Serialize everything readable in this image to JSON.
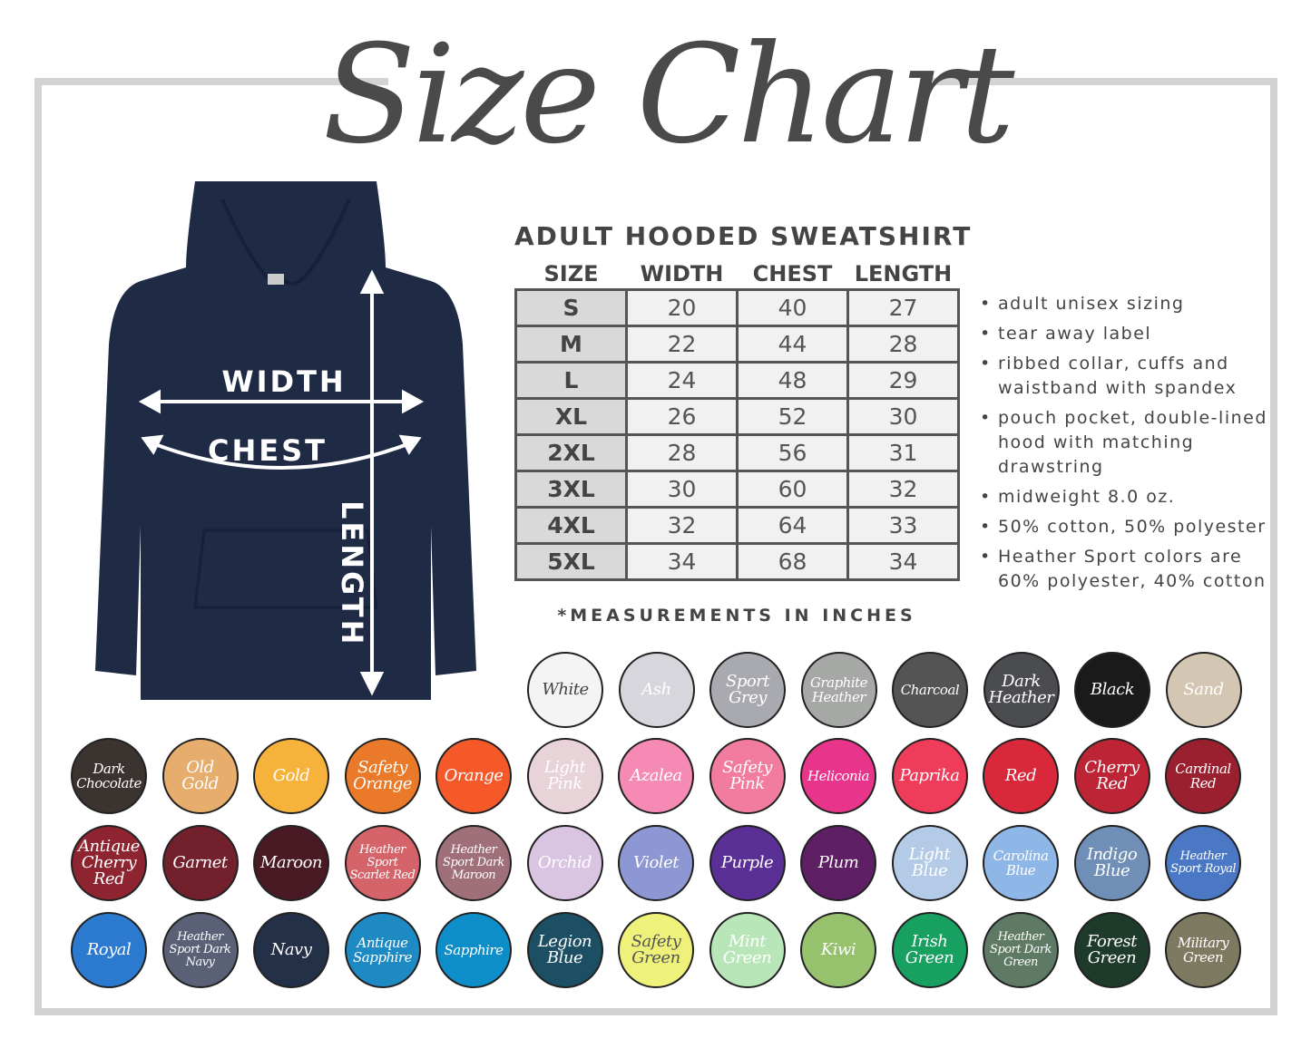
{
  "title": "Size Chart",
  "hoodie": {
    "color": "#1f2a44",
    "labels": {
      "width": "WIDTH",
      "chest": "CHEST",
      "length": "LENGTH"
    }
  },
  "table": {
    "title": "ADULT HOODED SWEATSHIRT",
    "headers": [
      "SIZE",
      "WIDTH",
      "CHEST",
      "LENGTH"
    ],
    "rows": [
      [
        "S",
        "20",
        "40",
        "27"
      ],
      [
        "M",
        "22",
        "44",
        "28"
      ],
      [
        "L",
        "24",
        "48",
        "29"
      ],
      [
        "XL",
        "26",
        "52",
        "30"
      ],
      [
        "2XL",
        "28",
        "56",
        "31"
      ],
      [
        "3XL",
        "30",
        "60",
        "32"
      ],
      [
        "4XL",
        "32",
        "64",
        "33"
      ],
      [
        "5XL",
        "34",
        "68",
        "34"
      ]
    ],
    "note": "*MEASUREMENTS IN INCHES"
  },
  "features": [
    "adult unisex sizing",
    "tear away label",
    "ribbed collar, cuffs and waistband with spandex",
    "pouch pocket, double-lined hood with matching drawstring",
    "midweight 8.0 oz.",
    "50% cotton, 50% polyester",
    "Heather Sport colors are 60% polyester, 40% cotton"
  ],
  "colors": [
    [
      {
        "name": "White",
        "hex": "#f4f4f4",
        "text": "#444"
      },
      {
        "name": "Ash",
        "hex": "#d6d6dc",
        "text": "#fff"
      },
      {
        "name": "Sport Grey",
        "hex": "#a9a9b0",
        "text": "#fff"
      },
      {
        "name": "Graphite Heather",
        "hex": "#a6a8a6",
        "text": "#fff"
      },
      {
        "name": "Charcoal",
        "hex": "#545454",
        "text": "#fff"
      },
      {
        "name": "Dark Heather",
        "hex": "#4a4c50",
        "text": "#fff"
      },
      {
        "name": "Black",
        "hex": "#1a1a1a",
        "text": "#fff"
      },
      {
        "name": "Sand",
        "hex": "#d3c6b3",
        "text": "#fff"
      }
    ],
    [
      {
        "name": "Dark Chocolate",
        "hex": "#3b3330",
        "text": "#fff"
      },
      {
        "name": "Old Gold",
        "hex": "#e6ad6c",
        "text": "#fff"
      },
      {
        "name": "Gold",
        "hex": "#f7b23c",
        "text": "#fff"
      },
      {
        "name": "Safety Orange",
        "hex": "#ea7a2a",
        "text": "#fff"
      },
      {
        "name": "Orange",
        "hex": "#f5592a",
        "text": "#fff"
      },
      {
        "name": "Light Pink",
        "hex": "#e8d3d8",
        "text": "#fff"
      },
      {
        "name": "Azalea",
        "hex": "#f58ab4",
        "text": "#fff"
      },
      {
        "name": "Safety Pink",
        "hex": "#f27ca0",
        "text": "#fff"
      },
      {
        "name": "Heliconia",
        "hex": "#e8348a",
        "text": "#fff"
      },
      {
        "name": "Paprika",
        "hex": "#ee3c5a",
        "text": "#fff"
      },
      {
        "name": "Red",
        "hex": "#d8283a",
        "text": "#fff"
      },
      {
        "name": "Cherry Red",
        "hex": "#bd2536",
        "text": "#fff"
      },
      {
        "name": "Cardinal Red",
        "hex": "#9a2030",
        "text": "#fff"
      }
    ],
    [
      {
        "name": "Antique Cherry Red",
        "hex": "#8d2430",
        "text": "#fff"
      },
      {
        "name": "Garnet",
        "hex": "#72202c",
        "text": "#fff"
      },
      {
        "name": "Maroon",
        "hex": "#4a1a24",
        "text": "#fff"
      },
      {
        "name": "Heather Sport Scarlet Red",
        "hex": "#d4636a",
        "text": "#fff"
      },
      {
        "name": "Heather Sport Dark Maroon",
        "hex": "#a0707a",
        "text": "#fff"
      },
      {
        "name": "Orchid",
        "hex": "#d9c4e2",
        "text": "#fff"
      },
      {
        "name": "Violet",
        "hex": "#8d97d4",
        "text": "#fff"
      },
      {
        "name": "Purple",
        "hex": "#5a2f96",
        "text": "#fff"
      },
      {
        "name": "Plum",
        "hex": "#5e1f64",
        "text": "#fff"
      },
      {
        "name": "Light Blue",
        "hex": "#b4cbe8",
        "text": "#fff"
      },
      {
        "name": "Carolina Blue",
        "hex": "#8eb6e6",
        "text": "#fff"
      },
      {
        "name": "Indigo Blue",
        "hex": "#6f8fb6",
        "text": "#fff"
      },
      {
        "name": "Heather Sport Royal",
        "hex": "#4a78c4",
        "text": "#fff"
      }
    ],
    [
      {
        "name": "Royal",
        "hex": "#2c7ad0",
        "text": "#fff"
      },
      {
        "name": "Heather Sport Dark Navy",
        "hex": "#5a6076",
        "text": "#fff"
      },
      {
        "name": "Navy",
        "hex": "#243048",
        "text": "#fff"
      },
      {
        "name": "Antique Sapphire",
        "hex": "#1e8ac4",
        "text": "#fff"
      },
      {
        "name": "Sapphire",
        "hex": "#0e8ec8",
        "text": "#fff"
      },
      {
        "name": "Legion Blue",
        "hex": "#1c4e64",
        "text": "#fff"
      },
      {
        "name": "Safety Green",
        "hex": "#eef27a",
        "text": "#555"
      },
      {
        "name": "Mint Green",
        "hex": "#b8e6b8",
        "text": "#fff"
      },
      {
        "name": "Kiwi",
        "hex": "#96c26e",
        "text": "#fff"
      },
      {
        "name": "Irish Green",
        "hex": "#18a060",
        "text": "#fff"
      },
      {
        "name": "Heather Sport Dark Green",
        "hex": "#5e7a64",
        "text": "#fff"
      },
      {
        "name": "Forest Green",
        "hex": "#1e3a2a",
        "text": "#fff"
      },
      {
        "name": "Military Green",
        "hex": "#7e7a62",
        "text": "#fff"
      }
    ]
  ]
}
